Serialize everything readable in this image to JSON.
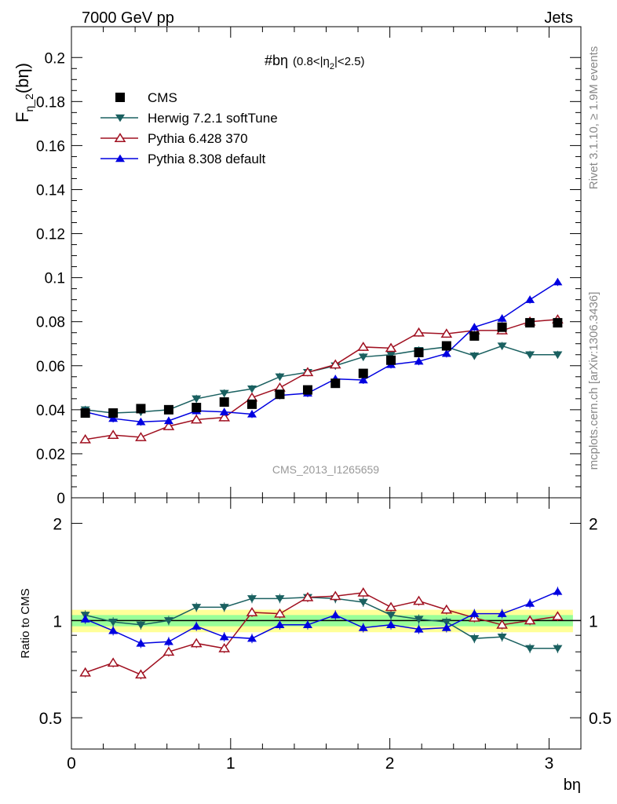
{
  "header": {
    "left": "7000 GeV pp",
    "right": "Jets"
  },
  "side_labels": {
    "rivet": "Rivet 3.1.10, ≥ 1.9M events",
    "mcplots": "mcplots.cern.ch [arXiv:1306.3436]"
  },
  "watermark": "CMS_2013_I1265659",
  "colors": {
    "cms": "#000000",
    "herwig": "#1a6060",
    "pythia6": "#a01020",
    "pythia8": "#0000e0",
    "band_inner": "#99ff99",
    "band_outer": "#ffff99"
  },
  "chart_data": [
    {
      "type": "scatter",
      "title": "#bη (0.8<|η₂|<2.5)",
      "title_main": "#bη",
      "title_sub": "(0.8<|η",
      "title_sub_idx": "2",
      "title_sub_end": "|<2.5)",
      "ylabel_main": "F",
      "ylabel_sub": "η_2",
      "ylabel_end": "(bη)",
      "xlim": [
        0,
        3.2
      ],
      "ylim": [
        0,
        0.214
      ],
      "yticks": [
        0,
        0.02,
        0.04,
        0.06,
        0.08,
        0.1,
        0.12,
        0.14,
        0.16,
        0.18,
        0.2
      ],
      "ytick_labels": [
        "0",
        "0.02",
        "0.04",
        "0.06",
        "0.08",
        "0.1",
        "0.12",
        "0.14",
        "0.16",
        "0.18",
        "0.2"
      ],
      "legend_position": "top-left",
      "x": [
        0.087,
        0.262,
        0.436,
        0.611,
        0.785,
        0.96,
        1.134,
        1.309,
        1.484,
        1.658,
        1.833,
        2.007,
        2.182,
        2.356,
        2.531,
        2.705,
        2.88,
        3.054
      ],
      "series": [
        {
          "name": "CMS",
          "marker": "square",
          "values": [
            0.0385,
            0.0385,
            0.0405,
            0.04,
            0.041,
            0.0435,
            0.0425,
            0.047,
            0.049,
            0.052,
            0.0565,
            0.0625,
            0.066,
            0.069,
            0.0735,
            0.0775,
            0.0795,
            0.0795
          ]
        },
        {
          "name": "Herwig 7.2.1 softTune",
          "marker": "triangle-down",
          "values": [
            0.04,
            0.0385,
            0.039,
            0.04,
            0.045,
            0.0475,
            0.0495,
            0.055,
            0.057,
            0.06,
            0.064,
            0.065,
            0.067,
            0.0685,
            0.0645,
            0.069,
            0.065,
            0.065
          ]
        },
        {
          "name": "Pythia 6.428 370",
          "marker": "triangle-up-open",
          "values": [
            0.0265,
            0.0285,
            0.0275,
            0.0325,
            0.0355,
            0.0365,
            0.0455,
            0.05,
            0.057,
            0.0605,
            0.0685,
            0.068,
            0.075,
            0.0745,
            0.076,
            0.076,
            0.08,
            0.081
          ]
        },
        {
          "name": "Pythia 8.308 default",
          "marker": "triangle-up",
          "values": [
            0.039,
            0.036,
            0.0345,
            0.035,
            0.0395,
            0.039,
            0.038,
            0.0465,
            0.0475,
            0.054,
            0.0535,
            0.0605,
            0.062,
            0.0655,
            0.0775,
            0.0815,
            0.09,
            0.098
          ]
        }
      ]
    },
    {
      "type": "scatter",
      "title": "",
      "xlabel": "bη",
      "ylabel": "Ratio to CMS",
      "scale": "log",
      "xlim": [
        0,
        3.2
      ],
      "ylim": [
        0.4,
        2.4
      ],
      "xticks": [
        0,
        1,
        2,
        3
      ],
      "xtick_labels": [
        "0",
        "1",
        "2",
        "3"
      ],
      "yticks": [
        0.5,
        1,
        2
      ],
      "ytick_labels": [
        "0.5",
        "1",
        "2"
      ],
      "band_inner": [
        0.96,
        1.04
      ],
      "band_outer": [
        0.92,
        1.08
      ],
      "x": [
        0.087,
        0.262,
        0.436,
        0.611,
        0.785,
        0.96,
        1.134,
        1.309,
        1.484,
        1.658,
        1.833,
        2.007,
        2.182,
        2.356,
        2.531,
        2.705,
        2.88,
        3.054
      ],
      "series": [
        {
          "name": "Herwig 7.2.1 softTune",
          "marker": "triangle-down",
          "values": [
            1.04,
            0.99,
            0.97,
            1.0,
            1.1,
            1.1,
            1.17,
            1.17,
            1.18,
            1.17,
            1.14,
            1.04,
            1.01,
            0.99,
            0.88,
            0.89,
            0.82,
            0.82
          ]
        },
        {
          "name": "Pythia 6.428 370",
          "marker": "triangle-up-open",
          "values": [
            0.69,
            0.74,
            0.68,
            0.8,
            0.85,
            0.82,
            1.06,
            1.05,
            1.18,
            1.19,
            1.22,
            1.1,
            1.15,
            1.08,
            1.02,
            0.97,
            1.0,
            1.03
          ]
        },
        {
          "name": "Pythia 8.308 default",
          "marker": "triangle-up",
          "values": [
            1.01,
            0.93,
            0.85,
            0.86,
            0.96,
            0.89,
            0.88,
            0.97,
            0.97,
            1.04,
            0.95,
            0.97,
            0.94,
            0.95,
            1.05,
            1.05,
            1.13,
            1.23
          ]
        }
      ]
    }
  ]
}
